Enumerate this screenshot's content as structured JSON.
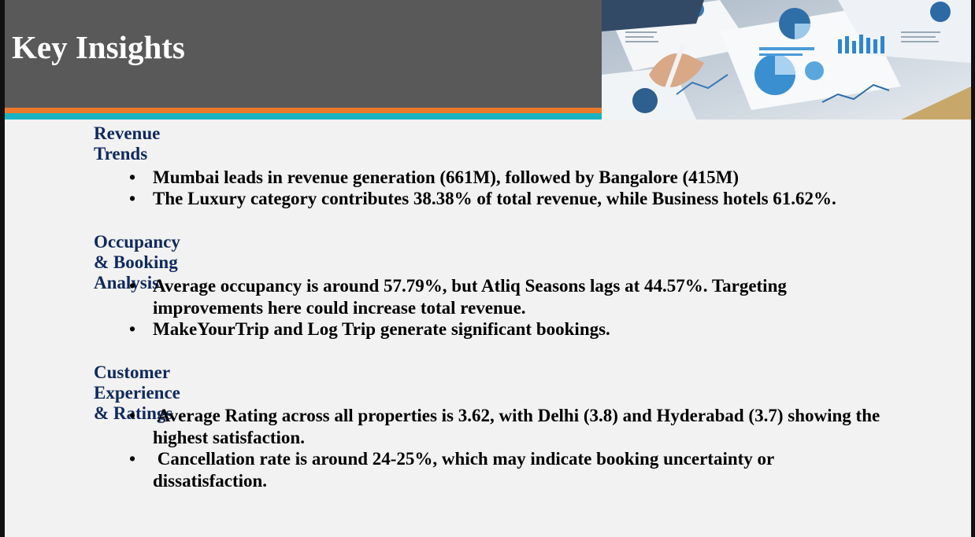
{
  "title": "Key Insights",
  "bullet_glyph": "•",
  "sections": [
    {
      "heading": "Revenue Trends",
      "bullets": [
        "Mumbai leads in revenue generation (661M), followed by Bangalore (415M)",
        "The Luxury category contributes 38.38% of total revenue, while Business hotels 61.62%."
      ]
    },
    {
      "heading": "Occupancy & Booking Analysis",
      "bullets": [
        "Average occupancy is around 57.79%, but Atliq Seasons lags at 44.57%. Targeting improvements here could increase total revenue.",
        "MakeYourTrip and Log Trip generate significant bookings."
      ]
    },
    {
      "heading": "Customer Experience & Ratings",
      "bullets": [
        " Average Rating across all properties is 3.62, with Delhi (3.8) and Hyderabad (3.7) showing the highest satisfaction.",
        " Cancellation rate is around 24-25%, which may indicate booking uncertainty or dissatisfaction."
      ]
    }
  ],
  "colors": {
    "header_bg": "#595959",
    "stripe_orange": "#ea7a2b",
    "stripe_teal": "#19b3c2",
    "heading": "#0f2a5c",
    "slide_bg": "#f2f2f2"
  }
}
